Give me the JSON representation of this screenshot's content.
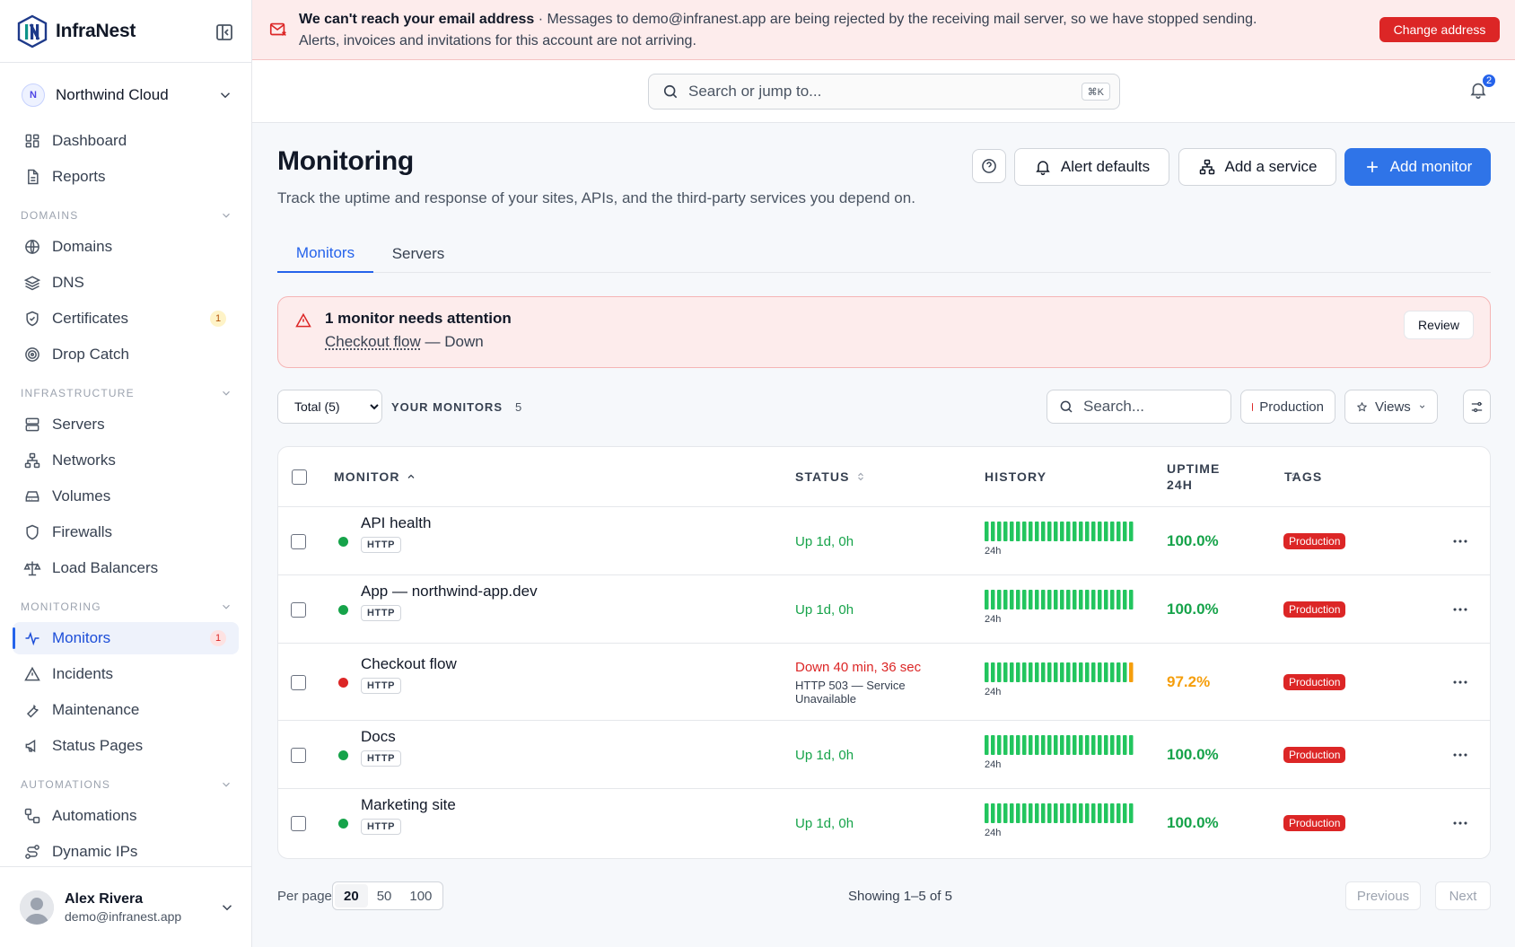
{
  "app": {
    "name": "InfraNest"
  },
  "workspace": {
    "initial": "N",
    "name": "Northwind Cloud"
  },
  "sidebar": {
    "top_items": [
      {
        "label": "Dashboard",
        "icon": "dashboard-icon"
      },
      {
        "label": "Reports",
        "icon": "document-icon"
      }
    ],
    "sections": [
      {
        "label": "DOMAINS",
        "items": [
          {
            "label": "Domains",
            "icon": "globe-icon"
          },
          {
            "label": "DNS",
            "icon": "layers-icon"
          },
          {
            "label": "Certificates",
            "icon": "shield-check-icon",
            "badge": "1"
          },
          {
            "label": "Drop Catch",
            "icon": "target-icon"
          }
        ]
      },
      {
        "label": "INFRASTRUCTURE",
        "items": [
          {
            "label": "Servers",
            "icon": "server-icon"
          },
          {
            "label": "Networks",
            "icon": "network-icon"
          },
          {
            "label": "Volumes",
            "icon": "hard-drive-icon"
          },
          {
            "label": "Firewalls",
            "icon": "shield-icon"
          },
          {
            "label": "Load Balancers",
            "icon": "scale-icon"
          }
        ]
      },
      {
        "label": "MONITORING",
        "items": [
          {
            "label": "Monitors",
            "icon": "activity-icon",
            "badge": "1",
            "active": true
          },
          {
            "label": "Incidents",
            "icon": "warning-icon"
          },
          {
            "label": "Maintenance",
            "icon": "wrench-icon"
          },
          {
            "label": "Status Pages",
            "icon": "megaphone-icon"
          }
        ]
      },
      {
        "label": "AUTOMATIONS",
        "items": [
          {
            "label": "Automations",
            "icon": "workflow-icon"
          },
          {
            "label": "Dynamic IPs",
            "icon": "route-icon"
          }
        ]
      }
    ]
  },
  "user": {
    "name": "Alex Rivera",
    "email": "demo@infranest.app"
  },
  "banner": {
    "title": "We can't reach your email address",
    "message": " · Messages to demo@infranest.app are being rejected by the receiving mail server, so we have stopped sending. Alerts, invoices and invitations for this account are not arriving.",
    "button": "Change address",
    "color": "#dc2626"
  },
  "topbar": {
    "search_placeholder": "Search or jump to...",
    "shortcut": "⌘K",
    "notifications": "2"
  },
  "page": {
    "title": "Monitoring",
    "subtitle": "Track the uptime and response of your sites, APIs, and the third-party services you depend on.",
    "buttons": {
      "alert_defaults": "Alert defaults",
      "add_service": "Add a service",
      "add_monitor": "Add monitor"
    }
  },
  "tabs": [
    {
      "label": "Monitors",
      "active": true
    },
    {
      "label": "Servers"
    }
  ],
  "alert": {
    "title": "1 monitor needs attention",
    "link": "Checkout flow",
    "suffix": " — Down",
    "button": "Review"
  },
  "filters": {
    "total_select": "Total (5)",
    "your_monitors": "YOUR MONITORS",
    "count": "5",
    "search_placeholder": "Search...",
    "tag_chip": "Production",
    "views": "Views"
  },
  "table": {
    "columns": {
      "monitor": "MONITOR",
      "status": "STATUS",
      "history": "HISTORY",
      "uptime_l1": "UPTIME",
      "uptime_l2": "24H",
      "tags": "TAGS"
    },
    "rows": [
      {
        "name": "API health",
        "type": "HTTP",
        "state": "up",
        "status": "Up 1d, 0h",
        "history_label": "24h",
        "uptime": "100.0%",
        "tag": "Production"
      },
      {
        "name": "App — northwind-app.dev",
        "type": "HTTP",
        "state": "up",
        "status": "Up 1d, 0h",
        "history_label": "24h",
        "uptime": "100.0%",
        "tag": "Production"
      },
      {
        "name": "Checkout flow",
        "type": "HTTP",
        "state": "down",
        "status": "Down 40 min, 36 sec",
        "status_detail": "HTTP 503 — Service Unavailable",
        "history_label": "24h",
        "uptime": "97.2%",
        "tag": "Production"
      },
      {
        "name": "Docs",
        "type": "HTTP",
        "state": "up",
        "status": "Up 1d, 0h",
        "history_label": "24h",
        "uptime": "100.0%",
        "tag": "Production"
      },
      {
        "name": "Marketing site",
        "type": "HTTP",
        "state": "up",
        "status": "Up 1d, 0h",
        "history_label": "24h",
        "uptime": "100.0%",
        "tag": "Production"
      }
    ]
  },
  "pagination": {
    "per_page_label": "Per page",
    "options": [
      "20",
      "50",
      "100"
    ],
    "selected": "20",
    "showing": "Showing 1–5 of 5",
    "previous": "Previous",
    "next": "Next"
  },
  "colors": {
    "accent": "#2563eb",
    "up": "#16a34a",
    "down": "#dc2626",
    "degraded": "#f59e0b"
  }
}
